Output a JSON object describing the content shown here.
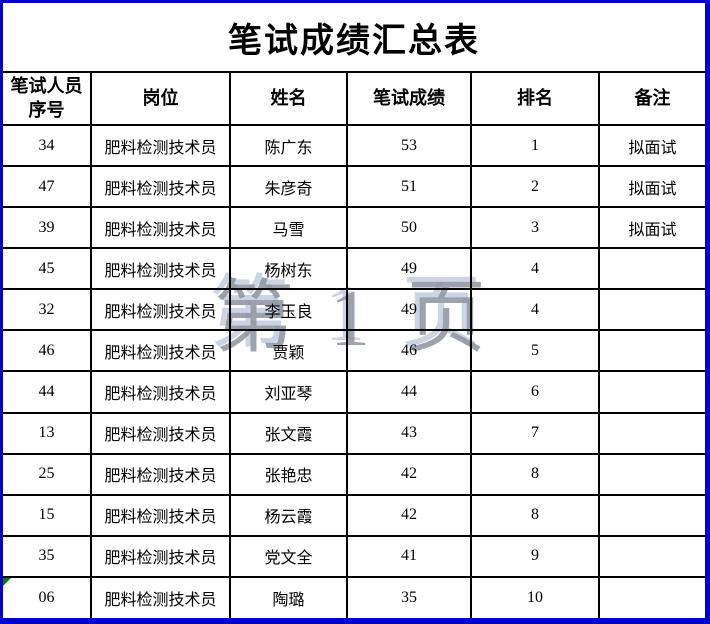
{
  "page": {
    "title": "笔试成绩汇总表",
    "watermark_text": "第 1 页"
  },
  "colors": {
    "frame_blue": "#0000CC",
    "grid_black": "#000000",
    "indicator_green": "#008000",
    "watermark_gray": "rgba(140,147,158,0.85)",
    "watermark_highlight_blue": "rgba(200,210,228,0.95)"
  },
  "table": {
    "headers": [
      "笔试人员\n序号",
      "岗位",
      "姓名",
      "笔试成绩",
      "排名",
      "备注"
    ],
    "header_keys": [
      "serial",
      "position",
      "name",
      "score",
      "rank",
      "remark"
    ],
    "rows": [
      {
        "serial": "34",
        "position": "肥料检测技术员",
        "name": "陈广东",
        "score": "53",
        "rank": "1",
        "remark": "拟面试",
        "indicator": false
      },
      {
        "serial": "47",
        "position": "肥料检测技术员",
        "name": "朱彦奇",
        "score": "51",
        "rank": "2",
        "remark": "拟面试",
        "indicator": false
      },
      {
        "serial": "39",
        "position": "肥料检测技术员",
        "name": "马雪",
        "score": "50",
        "rank": "3",
        "remark": "拟面试",
        "indicator": false
      },
      {
        "serial": "45",
        "position": "肥料检测技术员",
        "name": "杨树东",
        "score": "49",
        "rank": "4",
        "remark": "",
        "indicator": false
      },
      {
        "serial": "32",
        "position": "肥料检测技术员",
        "name": "李玉良",
        "score": "49",
        "rank": "4",
        "remark": "",
        "indicator": false
      },
      {
        "serial": "46",
        "position": "肥料检测技术员",
        "name": "贾颖",
        "score": "46",
        "rank": "5",
        "remark": "",
        "indicator": false
      },
      {
        "serial": "44",
        "position": "肥料检测技术员",
        "name": "刘亚琴",
        "score": "44",
        "rank": "6",
        "remark": "",
        "indicator": false
      },
      {
        "serial": "13",
        "position": "肥料检测技术员",
        "name": "张文霞",
        "score": "43",
        "rank": "7",
        "remark": "",
        "indicator": false
      },
      {
        "serial": "25",
        "position": "肥料检测技术员",
        "name": "张艳忠",
        "score": "42",
        "rank": "8",
        "remark": "",
        "indicator": false
      },
      {
        "serial": "15",
        "position": "肥料检测技术员",
        "name": "杨云霞",
        "score": "42",
        "rank": "8",
        "remark": "",
        "indicator": false
      },
      {
        "serial": "35",
        "position": "肥料检测技术员",
        "name": "党文全",
        "score": "41",
        "rank": "9",
        "remark": "",
        "indicator": false
      },
      {
        "serial": "06",
        "position": "肥料检测技术员",
        "name": "陶璐",
        "score": "35",
        "rank": "10",
        "remark": "",
        "indicator": true
      }
    ]
  }
}
